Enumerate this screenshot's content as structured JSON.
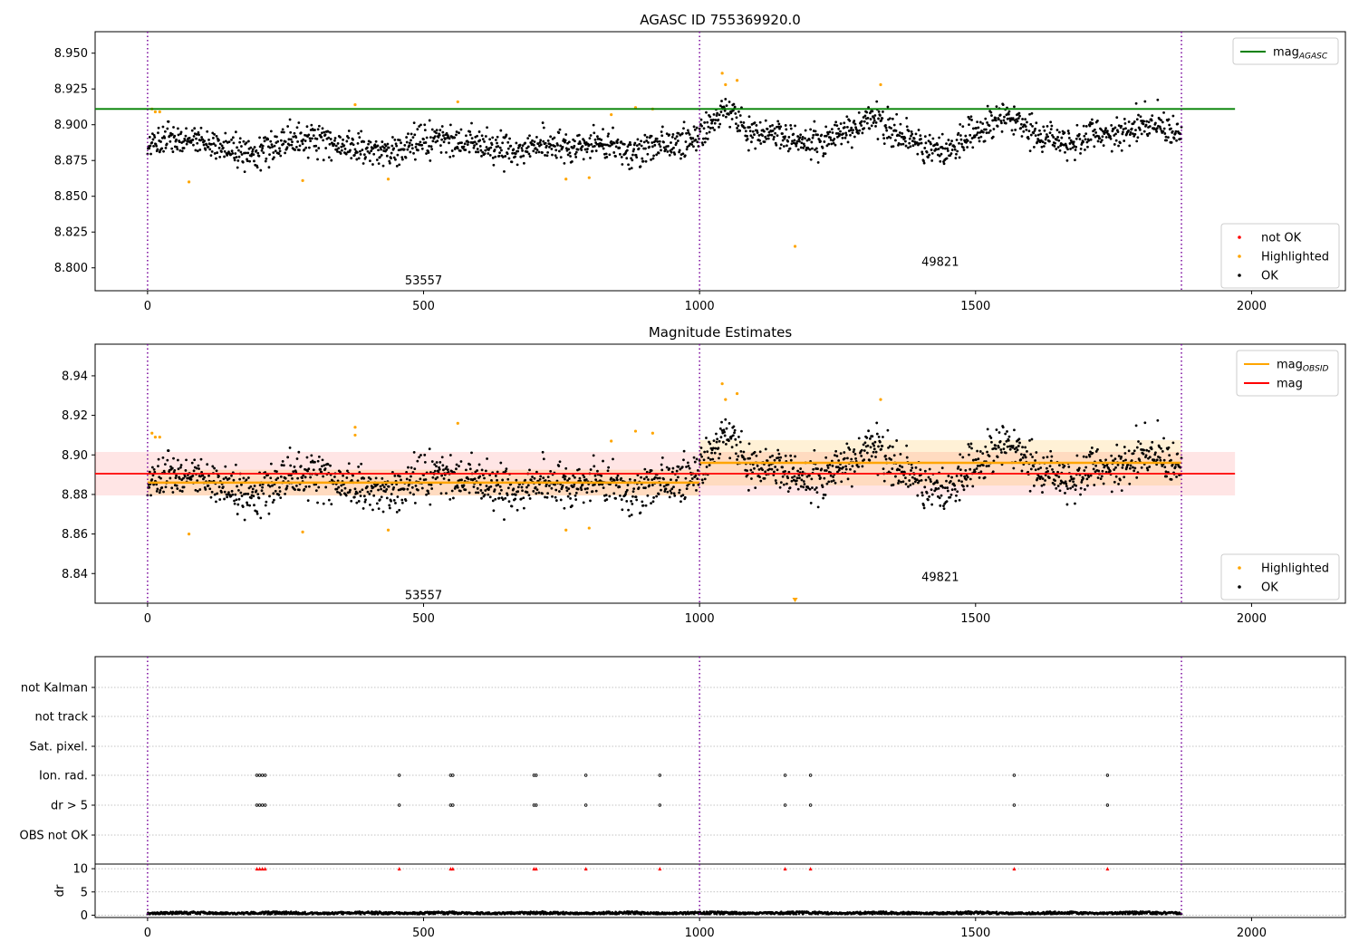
{
  "chart_data": [
    {
      "type": "scatter",
      "title": "AGASC ID 755369920.0",
      "xlim": [
        -95,
        2170
      ],
      "ylim": [
        8.784,
        8.965
      ],
      "x_ticks": [
        0,
        500,
        1000,
        1500,
        2000
      ],
      "y_ticks": [
        8.8,
        8.825,
        8.85,
        8.875,
        8.9,
        8.925,
        8.95
      ],
      "y_tick_labels": [
        "8.800",
        "8.825",
        "8.850",
        "8.875",
        "8.900",
        "8.925",
        "8.950"
      ],
      "obsid_boundaries": [
        0,
        1000,
        1873
      ],
      "obsid_labels": [
        {
          "text": "53557",
          "x": 500,
          "y": 8.791
        },
        {
          "text": "49821",
          "x": 1436,
          "y": 8.804
        }
      ],
      "mag_agasc": {
        "value": 8.911,
        "x_range": [
          -95,
          1970
        ],
        "color": "#008000"
      },
      "legend_top": [
        {
          "label": "mag",
          "subscript": "AGASC",
          "color": "#008000",
          "marker": "line"
        }
      ],
      "legend_bottom": [
        {
          "label": "not OK",
          "color": "#ff0000",
          "marker": "dot"
        },
        {
          "label": "Highlighted",
          "color": "#ffa500",
          "marker": "dot"
        },
        {
          "label": "OK",
          "color": "#000000",
          "marker": "dot"
        }
      ],
      "series": [
        {
          "name": "Highlighted",
          "color": "#ffa500",
          "x": [
            8,
            14,
            22,
            75,
            281,
            376,
            436,
            562,
            758,
            800,
            840,
            884,
            915,
            1041,
            1047,
            1068,
            1173,
            1328
          ],
          "y": [
            8.911,
            8.909,
            8.909,
            8.86,
            8.861,
            8.914,
            8.862,
            8.916,
            8.862,
            8.863,
            8.907,
            8.912,
            8.911,
            8.936,
            8.928,
            8.931,
            8.815,
            8.928
          ]
        }
      ]
    },
    {
      "type": "scatter",
      "title": "Magnitude Estimates",
      "xlim": [
        -95,
        2170
      ],
      "ylim": [
        8.825,
        8.956
      ],
      "x_ticks": [
        0,
        500,
        1000,
        1500,
        2000
      ],
      "y_ticks": [
        8.84,
        8.86,
        8.88,
        8.9,
        8.92,
        8.94
      ],
      "y_tick_labels": [
        "8.84",
        "8.86",
        "8.88",
        "8.90",
        "8.92",
        "8.94"
      ],
      "obsid_boundaries": [
        0,
        1000,
        1873
      ],
      "obsid_labels": [
        {
          "text": "53557",
          "x": 500,
          "y": 8.829
        },
        {
          "text": "49821",
          "x": 1436,
          "y": 8.838
        }
      ],
      "mag": {
        "value": 8.8905,
        "band": [
          8.8795,
          8.9015
        ],
        "x_range": [
          -95,
          1970
        ],
        "color": "#ff0000"
      },
      "mag_obsid": [
        {
          "x_range": [
            0,
            1000
          ],
          "value": 8.886,
          "band": [
            8.8795,
            8.8925
          ],
          "color": "#ffa500"
        },
        {
          "x_range": [
            1000,
            1873
          ],
          "value": 8.896,
          "band": [
            8.8845,
            8.9075
          ],
          "color": "#ffa500"
        }
      ],
      "legend_top": [
        {
          "label": "mag",
          "subscript": "OBSID",
          "color": "#ffa500",
          "marker": "line"
        },
        {
          "label": "mag",
          "subscript": "",
          "color": "#ff0000",
          "marker": "line"
        }
      ],
      "legend_bottom": [
        {
          "label": "Highlighted",
          "color": "#ffa500",
          "marker": "dot"
        },
        {
          "label": "OK",
          "color": "#000000",
          "marker": "dot"
        }
      ],
      "series": [
        {
          "name": "Highlighted",
          "color": "#ffa500",
          "x": [
            8,
            14,
            22,
            75,
            281,
            376,
            376,
            436,
            562,
            758,
            800,
            840,
            884,
            915,
            1041,
            1047,
            1068,
            1328
          ],
          "y": [
            8.911,
            8.909,
            8.909,
            8.86,
            8.861,
            8.914,
            8.91,
            8.862,
            8.916,
            8.862,
            8.863,
            8.907,
            8.912,
            8.911,
            8.936,
            8.928,
            8.931,
            8.928
          ]
        }
      ],
      "out_of_range_marker": {
        "x": 1173,
        "color": "#ffa500"
      }
    },
    {
      "type": "scatter",
      "title": "",
      "xlim": [
        -95,
        2170
      ],
      "x_ticks": [
        0,
        500,
        1000,
        1500,
        2000
      ],
      "obsid_boundaries": [
        0,
        1000,
        1873
      ],
      "flag_rows": [
        "not Kalman",
        "not track",
        "Sat. pixel.",
        "Ion. rad.",
        "dr > 5",
        "OBS not OK"
      ],
      "flag_events": {
        "Ion. rad.": [
          198,
          203,
          208,
          213,
          456,
          549,
          553,
          700,
          704,
          794,
          928,
          1155,
          1201,
          1570,
          1739
        ],
        "dr > 5": [
          198,
          203,
          208,
          213,
          456,
          549,
          553,
          700,
          704,
          794,
          928,
          1155,
          1201,
          1570,
          1739
        ]
      },
      "dr_panel": {
        "ylabel": "dr",
        "ylim": [
          -0.5,
          11
        ],
        "y_ticks": [
          0,
          5,
          10
        ],
        "clipped_value": 10,
        "clipped_color": "#ff0000",
        "clipped_x": [
          198,
          203,
          208,
          213,
          456,
          549,
          553,
          700,
          704,
          794,
          928,
          1155,
          1201,
          1570,
          1739
        ],
        "typical_range": [
          0.2,
          0.8
        ]
      }
    }
  ]
}
